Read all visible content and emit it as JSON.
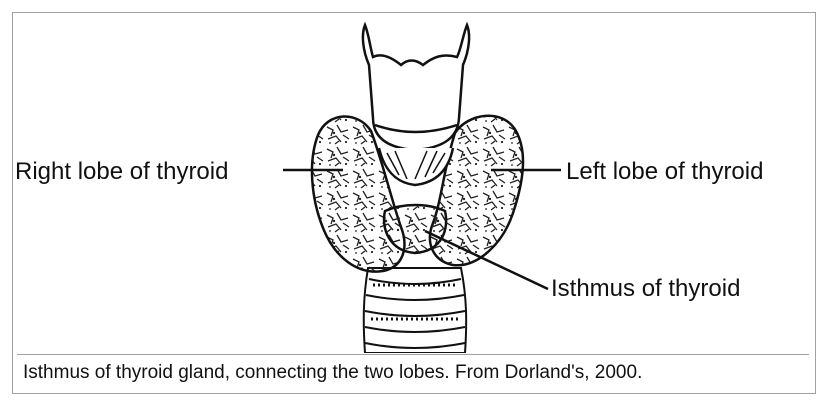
{
  "figure": {
    "labels": {
      "right_lobe": "Right lobe of thyroid",
      "left_lobe": "Left lobe of thyroid",
      "isthmus": "Isthmus of thyroid"
    },
    "ink_color": "#111111"
  },
  "caption": "Isthmus of thyroid gland, connecting the two lobes. From Dorland's, 2000."
}
